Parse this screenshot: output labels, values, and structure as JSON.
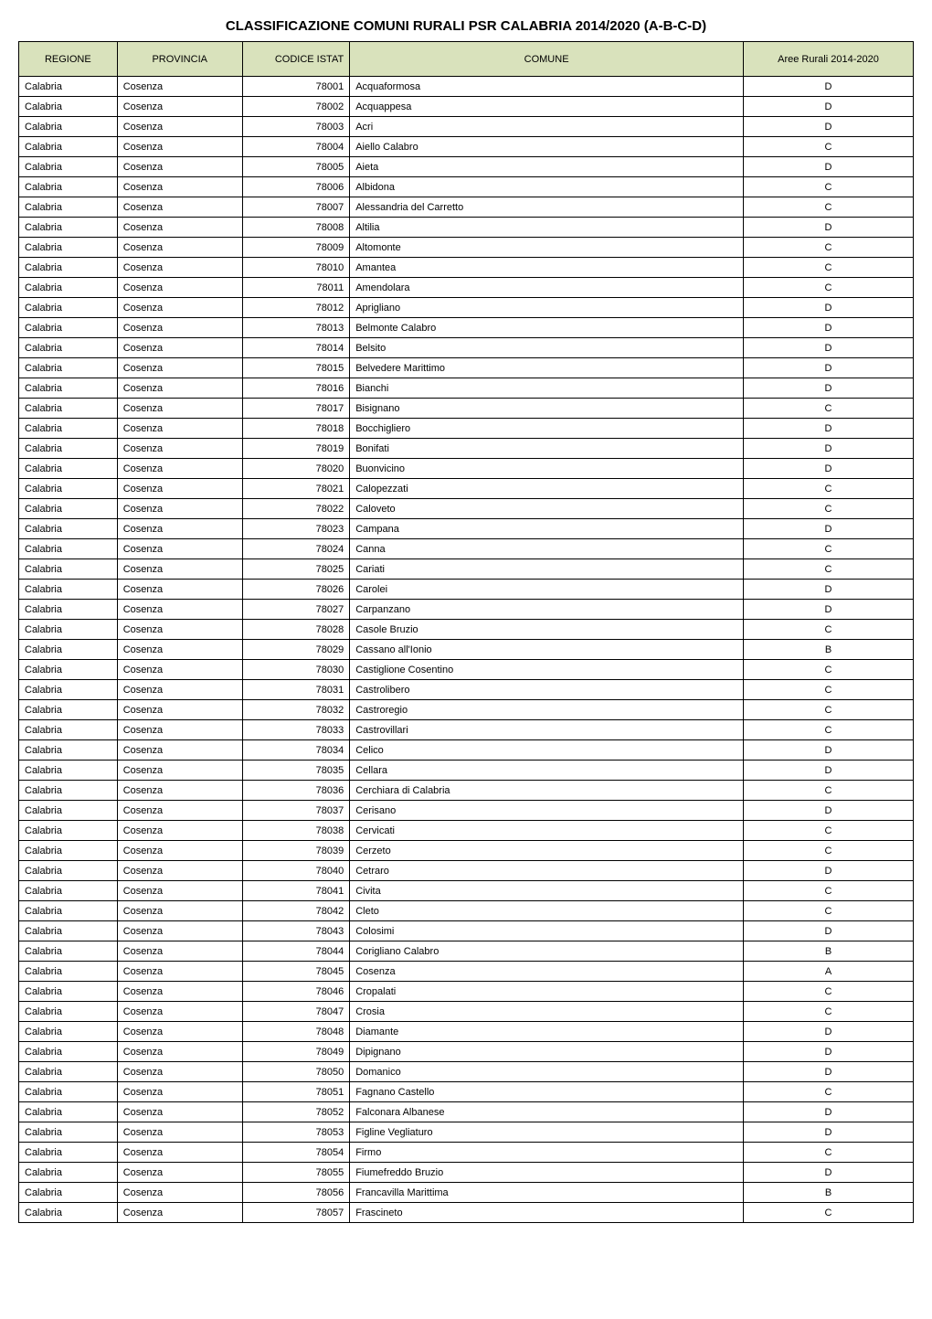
{
  "title": "CLASSIFICAZIONE COMUNI RURALI PSR CALABRIA 2014/2020 (A-B-C-D)",
  "columns": [
    "REGIONE",
    "PROVINCIA",
    "CODICE ISTAT",
    "COMUNE",
    "Aree Rurali 2014-2020"
  ],
  "styling": {
    "header_bg": "#d9e2bc",
    "border_color": "#000000",
    "font_family": "Arial",
    "title_fontsize": 15,
    "cell_fontsize": 11,
    "page_bg": "#ffffff",
    "col_widths_pct": [
      11,
      14,
      12,
      44,
      19
    ],
    "col_align": [
      "left",
      "left",
      "right",
      "left",
      "center"
    ]
  },
  "rows": [
    [
      "Calabria",
      "Cosenza",
      "78001",
      "Acquaformosa",
      "D"
    ],
    [
      "Calabria",
      "Cosenza",
      "78002",
      "Acquappesa",
      "D"
    ],
    [
      "Calabria",
      "Cosenza",
      "78003",
      "Acri",
      "D"
    ],
    [
      "Calabria",
      "Cosenza",
      "78004",
      "Aiello Calabro",
      "C"
    ],
    [
      "Calabria",
      "Cosenza",
      "78005",
      "Aieta",
      "D"
    ],
    [
      "Calabria",
      "Cosenza",
      "78006",
      "Albidona",
      "C"
    ],
    [
      "Calabria",
      "Cosenza",
      "78007",
      "Alessandria del Carretto",
      "C"
    ],
    [
      "Calabria",
      "Cosenza",
      "78008",
      "Altilia",
      "D"
    ],
    [
      "Calabria",
      "Cosenza",
      "78009",
      "Altomonte",
      "C"
    ],
    [
      "Calabria",
      "Cosenza",
      "78010",
      "Amantea",
      "C"
    ],
    [
      "Calabria",
      "Cosenza",
      "78011",
      "Amendolara",
      "C"
    ],
    [
      "Calabria",
      "Cosenza",
      "78012",
      "Aprigliano",
      "D"
    ],
    [
      "Calabria",
      "Cosenza",
      "78013",
      "Belmonte Calabro",
      "D"
    ],
    [
      "Calabria",
      "Cosenza",
      "78014",
      "Belsito",
      "D"
    ],
    [
      "Calabria",
      "Cosenza",
      "78015",
      "Belvedere Marittimo",
      "D"
    ],
    [
      "Calabria",
      "Cosenza",
      "78016",
      "Bianchi",
      "D"
    ],
    [
      "Calabria",
      "Cosenza",
      "78017",
      "Bisignano",
      "C"
    ],
    [
      "Calabria",
      "Cosenza",
      "78018",
      "Bocchigliero",
      "D"
    ],
    [
      "Calabria",
      "Cosenza",
      "78019",
      "Bonifati",
      "D"
    ],
    [
      "Calabria",
      "Cosenza",
      "78020",
      "Buonvicino",
      "D"
    ],
    [
      "Calabria",
      "Cosenza",
      "78021",
      "Calopezzati",
      "C"
    ],
    [
      "Calabria",
      "Cosenza",
      "78022",
      "Caloveto",
      "C"
    ],
    [
      "Calabria",
      "Cosenza",
      "78023",
      "Campana",
      "D"
    ],
    [
      "Calabria",
      "Cosenza",
      "78024",
      "Canna",
      "C"
    ],
    [
      "Calabria",
      "Cosenza",
      "78025",
      "Cariati",
      "C"
    ],
    [
      "Calabria",
      "Cosenza",
      "78026",
      "Carolei",
      "D"
    ],
    [
      "Calabria",
      "Cosenza",
      "78027",
      "Carpanzano",
      "D"
    ],
    [
      "Calabria",
      "Cosenza",
      "78028",
      "Casole Bruzio",
      "C"
    ],
    [
      "Calabria",
      "Cosenza",
      "78029",
      "Cassano all'Ionio",
      "B"
    ],
    [
      "Calabria",
      "Cosenza",
      "78030",
      "Castiglione Cosentino",
      "C"
    ],
    [
      "Calabria",
      "Cosenza",
      "78031",
      "Castrolibero",
      "C"
    ],
    [
      "Calabria",
      "Cosenza",
      "78032",
      "Castroregio",
      "C"
    ],
    [
      "Calabria",
      "Cosenza",
      "78033",
      "Castrovillari",
      "C"
    ],
    [
      "Calabria",
      "Cosenza",
      "78034",
      "Celico",
      "D"
    ],
    [
      "Calabria",
      "Cosenza",
      "78035",
      "Cellara",
      "D"
    ],
    [
      "Calabria",
      "Cosenza",
      "78036",
      "Cerchiara di Calabria",
      "C"
    ],
    [
      "Calabria",
      "Cosenza",
      "78037",
      "Cerisano",
      "D"
    ],
    [
      "Calabria",
      "Cosenza",
      "78038",
      "Cervicati",
      "C"
    ],
    [
      "Calabria",
      "Cosenza",
      "78039",
      "Cerzeto",
      "C"
    ],
    [
      "Calabria",
      "Cosenza",
      "78040",
      "Cetraro",
      "D"
    ],
    [
      "Calabria",
      "Cosenza",
      "78041",
      "Civita",
      "C"
    ],
    [
      "Calabria",
      "Cosenza",
      "78042",
      "Cleto",
      "C"
    ],
    [
      "Calabria",
      "Cosenza",
      "78043",
      "Colosimi",
      "D"
    ],
    [
      "Calabria",
      "Cosenza",
      "78044",
      "Corigliano Calabro",
      "B"
    ],
    [
      "Calabria",
      "Cosenza",
      "78045",
      "Cosenza",
      "A"
    ],
    [
      "Calabria",
      "Cosenza",
      "78046",
      "Cropalati",
      "C"
    ],
    [
      "Calabria",
      "Cosenza",
      "78047",
      "Crosia",
      "C"
    ],
    [
      "Calabria",
      "Cosenza",
      "78048",
      "Diamante",
      "D"
    ],
    [
      "Calabria",
      "Cosenza",
      "78049",
      "Dipignano",
      "D"
    ],
    [
      "Calabria",
      "Cosenza",
      "78050",
      "Domanico",
      "D"
    ],
    [
      "Calabria",
      "Cosenza",
      "78051",
      "Fagnano Castello",
      "C"
    ],
    [
      "Calabria",
      "Cosenza",
      "78052",
      "Falconara Albanese",
      "D"
    ],
    [
      "Calabria",
      "Cosenza",
      "78053",
      "Figline Vegliaturo",
      "D"
    ],
    [
      "Calabria",
      "Cosenza",
      "78054",
      "Firmo",
      "C"
    ],
    [
      "Calabria",
      "Cosenza",
      "78055",
      "Fiumefreddo Bruzio",
      "D"
    ],
    [
      "Calabria",
      "Cosenza",
      "78056",
      "Francavilla Marittima",
      "B"
    ],
    [
      "Calabria",
      "Cosenza",
      "78057",
      "Frascineto",
      "C"
    ]
  ]
}
